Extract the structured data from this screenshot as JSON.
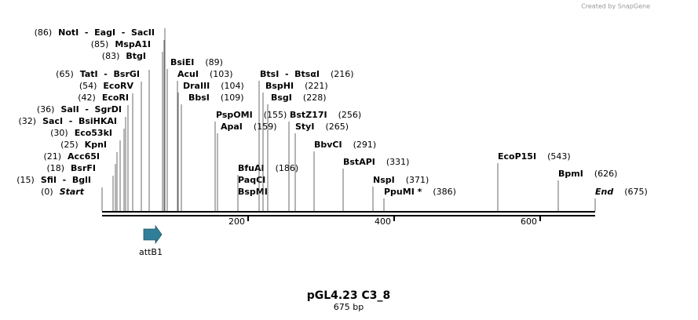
{
  "credit": "Created by SnapGene",
  "title": "pGL4.23 C3_8",
  "length": "675 bp",
  "feature": "attB1",
  "ruler": [
    "200",
    "400",
    "600"
  ],
  "enzymes": [
    {
      "name": "NotI  -  EagI  -  SacII",
      "position": "(86)"
    },
    {
      "name": "MspA1I",
      "position": "(85)"
    },
    {
      "name": "BtgI",
      "position": "(83)"
    },
    {
      "name": "TatI  -  BsrGI",
      "position": "(65)"
    },
    {
      "name": "EcoRV",
      "position": "(54)"
    },
    {
      "name": "EcoRI",
      "position": "(42)"
    },
    {
      "name": "SalI  -  SgrDI",
      "position": "(36)"
    },
    {
      "name": "SacI  -  BsiHKAI",
      "position": "(32)"
    },
    {
      "name": "Eco53kI",
      "position": "(30)"
    },
    {
      "name": "KpnI",
      "position": "(25)"
    },
    {
      "name": "Acc65I",
      "position": "(21)"
    },
    {
      "name": "BsrFI",
      "position": "(18)"
    },
    {
      "name": "SfiI  -  BglI",
      "position": "(15)"
    },
    {
      "name": "Start",
      "position": "(0)"
    },
    {
      "name": "BsiEI",
      "position": "(89)"
    },
    {
      "name": "AcuI",
      "position": "(103)"
    },
    {
      "name": "DraIII",
      "position": "(104)"
    },
    {
      "name": "BbsI",
      "position": "(109)"
    },
    {
      "name": "PspOMI",
      "position": "(155)"
    },
    {
      "name": "ApaI",
      "position": "(159)"
    },
    {
      "name": "BfuAI",
      "position": "(186)"
    },
    {
      "name": "PaqCI",
      "position": ""
    },
    {
      "name": "BspMI",
      "position": ""
    },
    {
      "name": "BtsI  -  BtsαI",
      "position": "(216)"
    },
    {
      "name": "BspHI",
      "position": "(221)"
    },
    {
      "name": "BsgI",
      "position": "(228)"
    },
    {
      "name": "BstZ17I",
      "position": "(256)"
    },
    {
      "name": "StyI",
      "position": "(265)"
    },
    {
      "name": "BbvCI",
      "position": "(291)"
    },
    {
      "name": "BstAPI",
      "position": "(331)"
    },
    {
      "name": "NspI",
      "position": "(371)"
    },
    {
      "name": "PpuMI *",
      "position": "(386)"
    },
    {
      "name": "EcoP15I",
      "position": "(543)"
    },
    {
      "name": "BpmI",
      "position": "(626)"
    },
    {
      "name": "End",
      "position": "(675)"
    }
  ]
}
